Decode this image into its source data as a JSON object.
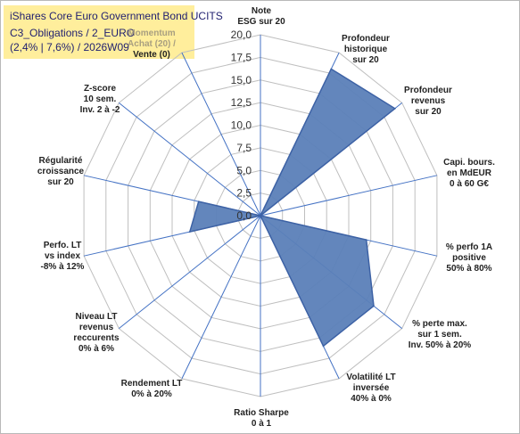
{
  "chart_data": {
    "type": "radar",
    "title_lines": [
      "iShares Core Euro Government Bond UCITS",
      "C3_Obligations / 2_EURO",
      "(2,4% | 7,6%) / 2026W09"
    ],
    "r_ticks": [
      "0,0",
      "2,5",
      "5,0",
      "7,5",
      "10,0",
      "12,5",
      "15,0",
      "17,5",
      "20,0"
    ],
    "r_range": [
      0,
      20
    ],
    "grid": true,
    "axes": [
      {
        "lines": [
          "Note",
          "ESG sur 20"
        ],
        "value": 0
      },
      {
        "lines": [
          "Profondeur",
          "historique",
          "sur 20"
        ],
        "value": 18
      },
      {
        "lines": [
          "Profondeur",
          "revenus",
          "sur 20"
        ],
        "value": 19
      },
      {
        "lines": [
          "Capi. bours.",
          "en MdEUR",
          "0 à 60 G€"
        ],
        "value": 0
      },
      {
        "lines": [
          "% perfo 1A",
          "positive",
          "50% à 80%"
        ],
        "value": 12
      },
      {
        "lines": [
          "% perte max.",
          "sur 1 sem.",
          "Inv. 50% à 20%"
        ],
        "value": 16
      },
      {
        "lines": [
          "Volatilité LT",
          "inversée",
          "40% à 0%"
        ],
        "value": 16
      },
      {
        "lines": [
          "Ratio Sharpe",
          "0 à 1"
        ],
        "value": 0
      },
      {
        "lines": [
          "Rendement LT",
          "0% à 20%"
        ],
        "value": 0
      },
      {
        "lines": [
          "Niveau LT",
          "revenus",
          "reccurents",
          "0% à 6%"
        ],
        "value": 0
      },
      {
        "lines": [
          "Perfo. LT",
          "vs index",
          "-8% à 12%"
        ],
        "value": 8
      },
      {
        "lines": [
          "Régularité",
          "croissance",
          "sur 20"
        ],
        "value": 7
      },
      {
        "lines": [
          "Z-score",
          "10 sem.",
          "Inv. 2 à -2"
        ],
        "value": 0
      },
      {
        "lines": [
          "Momentum",
          "Achat (20) /",
          "Vente (0)"
        ],
        "value": 0
      }
    ]
  },
  "colors": {
    "title_bg": "#ffee9c",
    "title_text": "#1f1f6f",
    "fill": "#5b7fb8",
    "stroke": "#3d62a5",
    "spoke": "#4472c4",
    "grid": "#bfbfbf",
    "momentum_text": "#a89f80"
  }
}
